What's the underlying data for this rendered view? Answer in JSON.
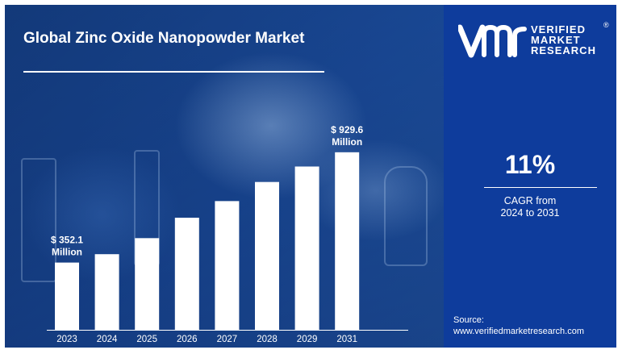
{
  "title": "Global Zinc Oxide Nanopowder Market",
  "logo": {
    "line1": "VERIFIED",
    "line2": "MARKET",
    "line3": "RESEARCH"
  },
  "cagr": {
    "value": "11%",
    "label_line1": "CAGR from",
    "label_line2": "2024 to 2031"
  },
  "source": {
    "label": "Source:",
    "url": "www.verifiedmarketresearch.com"
  },
  "colors": {
    "panel_blue": "#0e3c9c",
    "bar_white": "#ffffff",
    "background_blue": "#1b4fa0"
  },
  "chart_data": {
    "type": "bar",
    "title": "Global Zinc Oxide Nanopowder Market",
    "xlabel": "",
    "ylabel": "",
    "categories": [
      "2023",
      "2024",
      "2025",
      "2026",
      "2027",
      "2028",
      "2029",
      "2031"
    ],
    "values": [
      352.1,
      396,
      480,
      587,
      674,
      774,
      855,
      929.6
    ],
    "ylim": [
      0,
      1000
    ],
    "grid": false,
    "annotations": [
      {
        "category": "2023",
        "line1": "$ 352.1",
        "line2": "Million"
      },
      {
        "category": "2031",
        "line1": "$ 929.6",
        "line2": "Million"
      }
    ]
  }
}
